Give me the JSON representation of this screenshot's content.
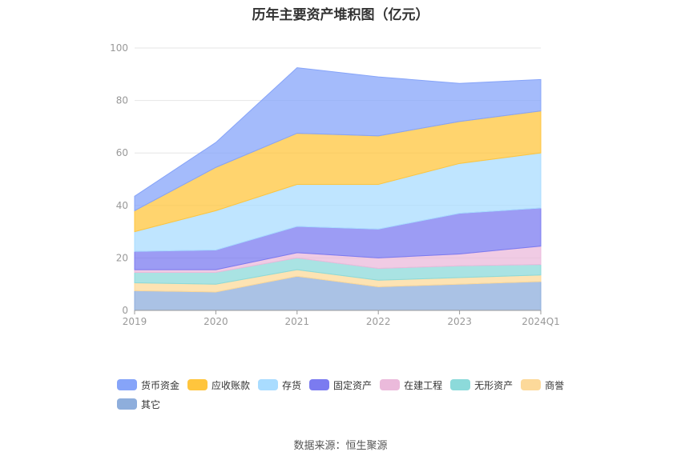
{
  "chart_data": {
    "type": "area",
    "stacked": true,
    "title": "历年主要资产堆积图（亿元）",
    "categories": [
      "2019",
      "2020",
      "2021",
      "2022",
      "2023",
      "2024Q1"
    ],
    "ylim": [
      0,
      100
    ],
    "yticks": [
      0,
      20,
      40,
      60,
      80,
      100
    ],
    "grid": true,
    "legend_position": "bottom",
    "series": [
      {
        "name": "其它",
        "color": "#8eaedc",
        "values": [
          7.5,
          7.0,
          13.0,
          9.0,
          10.0,
          11.0
        ]
      },
      {
        "name": "商誉",
        "color": "#fcd99a",
        "values": [
          3.0,
          3.0,
          2.5,
          2.5,
          2.5,
          2.5
        ]
      },
      {
        "name": "无形资产",
        "color": "#8cdada",
        "values": [
          4.0,
          4.5,
          4.5,
          4.5,
          4.5,
          4.0
        ]
      },
      {
        "name": "在建工程",
        "color": "#ebbadb",
        "values": [
          1.0,
          1.0,
          2.0,
          4.0,
          4.5,
          7.0
        ]
      },
      {
        "name": "固定资产",
        "color": "#7b7bf0",
        "values": [
          7.0,
          7.5,
          10.0,
          11.0,
          15.5,
          14.5
        ]
      },
      {
        "name": "存货",
        "color": "#a9dcff",
        "values": [
          7.5,
          15.0,
          16.0,
          17.0,
          19.0,
          21.0
        ]
      },
      {
        "name": "应收账款",
        "color": "#ffc53d",
        "values": [
          8.0,
          16.5,
          19.5,
          18.5,
          16.0,
          16.0
        ]
      },
      {
        "name": "货币资金",
        "color": "#86a4f9",
        "values": [
          5.5,
          9.5,
          25.0,
          22.5,
          14.5,
          12.0
        ]
      }
    ],
    "legend_order": [
      "货币资金",
      "应收账款",
      "存货",
      "固定资产",
      "在建工程",
      "无形资产",
      "商誉",
      "其它"
    ]
  },
  "footer": "数据来源：恒生聚源"
}
